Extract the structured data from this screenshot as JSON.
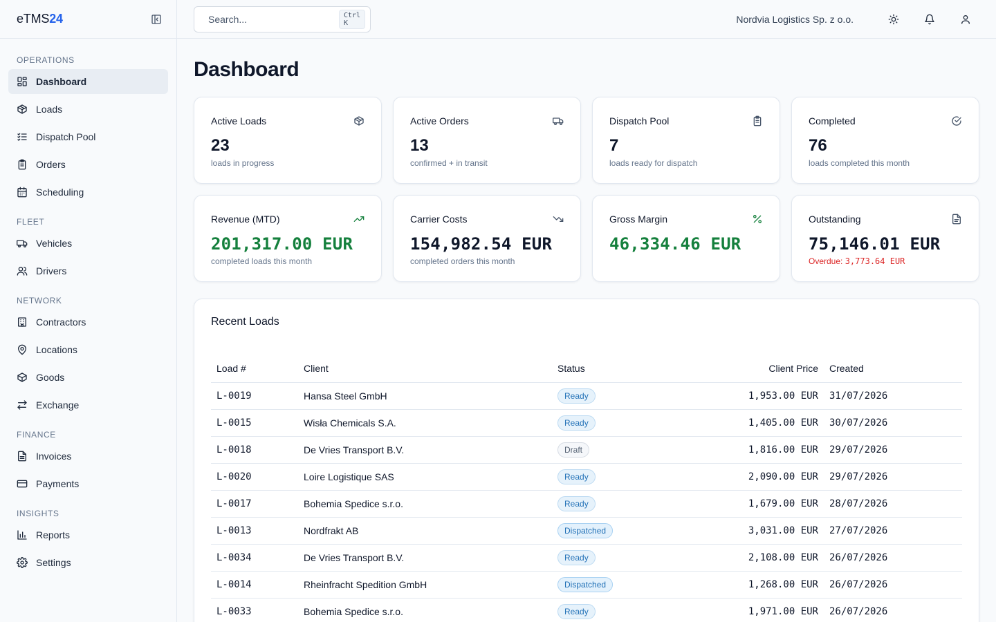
{
  "brand": {
    "name": "eTMS",
    "accent": "24"
  },
  "sidebar": {
    "sections": [
      {
        "title": "OPERATIONS",
        "items": [
          {
            "label": "Dashboard",
            "icon": "dashboard-icon",
            "active": true
          },
          {
            "label": "Loads",
            "icon": "package-icon"
          },
          {
            "label": "Dispatch Pool",
            "icon": "list-checks-icon"
          },
          {
            "label": "Orders",
            "icon": "clipboard-icon"
          },
          {
            "label": "Scheduling",
            "icon": "calendar-icon"
          }
        ]
      },
      {
        "title": "FLEET",
        "items": [
          {
            "label": "Vehicles",
            "icon": "truck-icon"
          },
          {
            "label": "Drivers",
            "icon": "users-icon"
          }
        ]
      },
      {
        "title": "NETWORK",
        "items": [
          {
            "label": "Contractors",
            "icon": "building-icon"
          },
          {
            "label": "Locations",
            "icon": "map-pin-icon"
          },
          {
            "label": "Goods",
            "icon": "box-icon"
          },
          {
            "label": "Exchange",
            "icon": "arrows-exchange-icon"
          }
        ]
      },
      {
        "title": "FINANCE",
        "items": [
          {
            "label": "Invoices",
            "icon": "file-text-icon"
          },
          {
            "label": "Payments",
            "icon": "credit-card-icon"
          }
        ]
      },
      {
        "title": "INSIGHTS",
        "items": [
          {
            "label": "Reports",
            "icon": "bar-chart-icon"
          },
          {
            "label": "Settings",
            "icon": "gear-icon"
          }
        ]
      }
    ]
  },
  "header": {
    "search_placeholder": "Search...",
    "search_shortcut": "Ctrl K",
    "company": "Nordvia Logistics Sp. z o.o."
  },
  "page": {
    "title": "Dashboard"
  },
  "stats": [
    {
      "title": "Active Loads",
      "value": "23",
      "sub": "loads in progress",
      "icon": "package-icon"
    },
    {
      "title": "Active Orders",
      "value": "13",
      "sub": "confirmed + in transit",
      "icon": "truck-icon"
    },
    {
      "title": "Dispatch Pool",
      "value": "7",
      "sub": "loads ready for dispatch",
      "icon": "clipboard-icon"
    },
    {
      "title": "Completed",
      "value": "76",
      "sub": "loads completed this month",
      "icon": "check-circle-icon"
    }
  ],
  "finance": [
    {
      "title": "Revenue (MTD)",
      "value": "201,317.00 EUR",
      "sub": "completed loads this month",
      "icon": "trending-up-icon",
      "color": "#15803d"
    },
    {
      "title": "Carrier Costs",
      "value": "154,982.54 EUR",
      "sub": "completed orders this month",
      "icon": "trending-down-icon",
      "color": "#0f172a"
    },
    {
      "title": "Gross Margin",
      "value": "46,334.46 EUR",
      "sub": "",
      "icon": "percent-icon",
      "color": "#15803d"
    },
    {
      "title": "Outstanding",
      "value": "75,146.01 EUR",
      "sub_label": "Overdue: ",
      "sub_value": "3,773.64 EUR",
      "icon": "file-icon",
      "color": "#0f172a"
    }
  ],
  "recent": {
    "title": "Recent Loads",
    "columns": {
      "load": "Load #",
      "client": "Client",
      "status": "Status",
      "price": "Client Price",
      "created": "Created"
    },
    "rows": [
      {
        "load": "L-0019",
        "client": "Hansa Steel GmbH",
        "status": "Ready",
        "price": "1,953.00 EUR",
        "created": "31/07/2026"
      },
      {
        "load": "L-0015",
        "client": "Wisła Chemicals S.A.",
        "status": "Ready",
        "price": "1,405.00 EUR",
        "created": "30/07/2026"
      },
      {
        "load": "L-0018",
        "client": "De Vries Transport B.V.",
        "status": "Draft",
        "price": "1,816.00 EUR",
        "created": "29/07/2026"
      },
      {
        "load": "L-0020",
        "client": "Loire Logistique SAS",
        "status": "Ready",
        "price": "2,090.00 EUR",
        "created": "29/07/2026"
      },
      {
        "load": "L-0017",
        "client": "Bohemia Spedice s.r.o.",
        "status": "Ready",
        "price": "1,679.00 EUR",
        "created": "28/07/2026"
      },
      {
        "load": "L-0013",
        "client": "Nordfrakt AB",
        "status": "Dispatched",
        "price": "3,031.00 EUR",
        "created": "27/07/2026"
      },
      {
        "load": "L-0034",
        "client": "De Vries Transport B.V.",
        "status": "Ready",
        "price": "2,108.00 EUR",
        "created": "26/07/2026"
      },
      {
        "load": "L-0014",
        "client": "Rheinfracht Spedition GmbH",
        "status": "Dispatched",
        "price": "1,268.00 EUR",
        "created": "26/07/2026"
      },
      {
        "load": "L-0033",
        "client": "Bohemia Spedice s.r.o.",
        "status": "Ready",
        "price": "1,971.00 EUR",
        "created": "26/07/2026"
      }
    ]
  }
}
